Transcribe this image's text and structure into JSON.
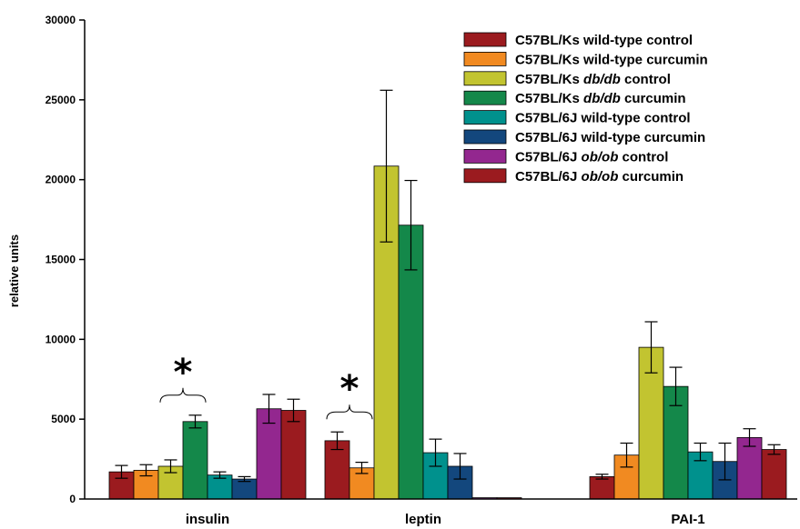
{
  "chart_data": {
    "type": "bar",
    "ylabel": "relative units",
    "xlabel": "",
    "ylim": [
      0,
      30000
    ],
    "yticks": [
      "0",
      "5000",
      "10000",
      "15000",
      "20000",
      "25000",
      "30000"
    ],
    "categories": [
      "insulin",
      "leptin",
      "PAI-1"
    ],
    "legend_position": "top-right",
    "series": [
      {
        "name": "C57BL/Ks wild-type control",
        "name_parts": [
          {
            "t": "C57BL/Ks wild-type control",
            "i": false
          }
        ],
        "color": "#9B1B1F",
        "values": [
          1700,
          3650,
          1400
        ],
        "errors": [
          400,
          550,
          150
        ]
      },
      {
        "name": "C57BL/Ks wild-type curcumin",
        "name_parts": [
          {
            "t": "C57BL/Ks wild-type curcumin",
            "i": false
          }
        ],
        "color": "#F18A21",
        "values": [
          1800,
          1950,
          2750
        ],
        "errors": [
          350,
          350,
          750
        ]
      },
      {
        "name": "C57BL/Ks db/db control",
        "name_parts": [
          {
            "t": "C57BL/Ks ",
            "i": false
          },
          {
            "t": "db/db",
            "i": true
          },
          {
            "t": " control",
            "i": false
          }
        ],
        "color": "#C2C430",
        "values": [
          2050,
          20850,
          9500
        ],
        "errors": [
          400,
          4750,
          1600
        ]
      },
      {
        "name": "C57BL/Ks db/db curcumin",
        "name_parts": [
          {
            "t": "C57BL/Ks ",
            "i": false
          },
          {
            "t": "db/db",
            "i": true
          },
          {
            "t": " curcumin",
            "i": false
          }
        ],
        "color": "#14884A",
        "values": [
          4850,
          17150,
          7050
        ],
        "errors": [
          400,
          2800,
          1200
        ]
      },
      {
        "name": "C57BL/6J wild-type control",
        "name_parts": [
          {
            "t": "C57BL/6J wild-type control",
            "i": false
          }
        ],
        "color": "#00918D",
        "values": [
          1500,
          2900,
          2950
        ],
        "errors": [
          200,
          850,
          550
        ]
      },
      {
        "name": "C57BL/6J wild-type curcumin",
        "name_parts": [
          {
            "t": "C57BL/6J wild-type curcumin",
            "i": false
          }
        ],
        "color": "#13477D",
        "values": [
          1250,
          2050,
          2350
        ],
        "errors": [
          150,
          800,
          1150
        ]
      },
      {
        "name": "C57BL/6J ob/ob control",
        "name_parts": [
          {
            "t": "C57BL/6J ",
            "i": false
          },
          {
            "t": "ob/ob",
            "i": true
          },
          {
            "t": " control",
            "i": false
          }
        ],
        "color": "#93278F",
        "values": [
          5650,
          80,
          3850
        ],
        "errors": [
          900,
          0,
          550
        ]
      },
      {
        "name": "C57BL/6J ob/ob curcumin",
        "name_parts": [
          {
            "t": "C57BL/6J ",
            "i": false
          },
          {
            "t": "ob/ob",
            "i": true
          },
          {
            "t": " curcumin",
            "i": false
          }
        ],
        "color": "#9B1B1F",
        "values": [
          5550,
          80,
          3100
        ],
        "errors": [
          700,
          0,
          300
        ]
      }
    ],
    "annotations": [
      {
        "text": "*",
        "category": "insulin",
        "bracket_series": [
          2,
          3
        ]
      },
      {
        "text": "*",
        "category": "leptin",
        "bracket_series": [
          0,
          1
        ]
      }
    ]
  }
}
